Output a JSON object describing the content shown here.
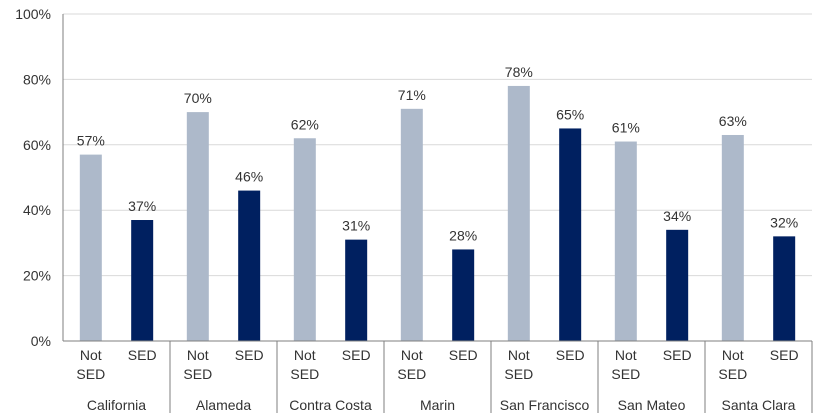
{
  "chart_data": {
    "type": "bar",
    "title": "",
    "xlabel": "",
    "ylabel": "",
    "ylim": [
      0,
      100
    ],
    "yticks": [
      0,
      20,
      40,
      60,
      80,
      100
    ],
    "ytick_suffix": "%",
    "grid": true,
    "legend": "none",
    "subcategories": [
      {
        "key": "not_sed",
        "line1": "Not",
        "line2": "SED",
        "color": "#adb9ca"
      },
      {
        "key": "sed",
        "line1": "SED",
        "line2": "",
        "color": "#002060"
      }
    ],
    "groups": [
      {
        "name": "California",
        "values": [
          57,
          37
        ],
        "labels": [
          "57%",
          "37%"
        ]
      },
      {
        "name": "Alameda",
        "values": [
          70,
          46
        ],
        "labels": [
          "70%",
          "46%"
        ]
      },
      {
        "name": "Contra Costa",
        "values": [
          62,
          31
        ],
        "labels": [
          "62%",
          "31%"
        ]
      },
      {
        "name": "Marin",
        "values": [
          71,
          28
        ],
        "labels": [
          "71%",
          "28%"
        ]
      },
      {
        "name": "San Francisco",
        "values": [
          78,
          65
        ],
        "labels": [
          "78%",
          "65%"
        ]
      },
      {
        "name": "San Mateo",
        "values": [
          61,
          34
        ],
        "labels": [
          "61%",
          "34%"
        ]
      },
      {
        "name": "Santa Clara",
        "values": [
          63,
          32
        ],
        "labels": [
          "63%",
          "32%"
        ]
      }
    ]
  }
}
